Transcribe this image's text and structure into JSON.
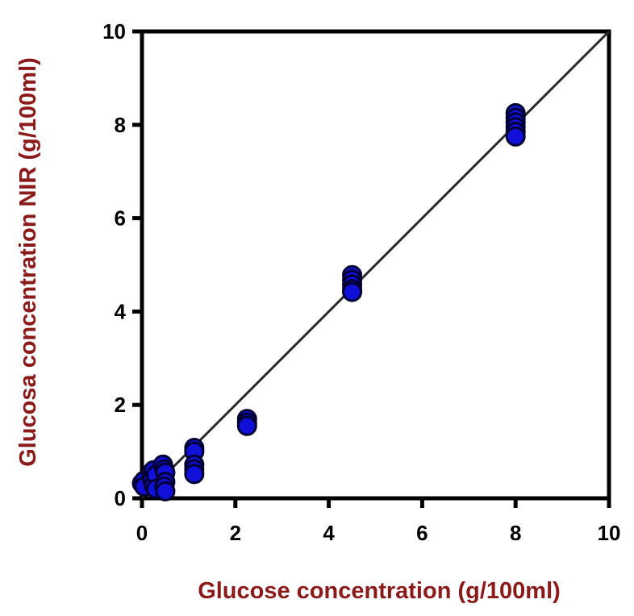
{
  "chart_data": {
    "type": "scatter",
    "title": "",
    "xlabel": "Glucose concentration (g/100ml)",
    "ylabel": "Glucosa concentration NIR (g/100ml)",
    "xlim": [
      0,
      10
    ],
    "ylim": [
      0,
      10
    ],
    "xticks": [
      "0",
      "2",
      "4",
      "6",
      "8",
      "10"
    ],
    "yticks": [
      "0",
      "2",
      "4",
      "6",
      "8",
      "10"
    ],
    "grid": false,
    "legend": "none",
    "colors": {
      "axis_title": "#8b1a1a",
      "marker_fill": "#1010d8",
      "marker_edge": "#000033",
      "line": "#2a2a2a"
    },
    "reference_line": {
      "x": [
        0,
        10
      ],
      "y": [
        0,
        10
      ]
    },
    "points": [
      {
        "x": 0.0,
        "y": 0.32
      },
      {
        "x": 0.05,
        "y": 0.38
      },
      {
        "x": 0.05,
        "y": 0.25
      },
      {
        "x": 0.2,
        "y": 0.55
      },
      {
        "x": 0.22,
        "y": 0.4
      },
      {
        "x": 0.25,
        "y": 0.6
      },
      {
        "x": 0.25,
        "y": 0.28
      },
      {
        "x": 0.3,
        "y": 0.5
      },
      {
        "x": 0.3,
        "y": 0.2
      },
      {
        "x": 0.45,
        "y": 0.72
      },
      {
        "x": 0.48,
        "y": 0.62
      },
      {
        "x": 0.5,
        "y": 0.55
      },
      {
        "x": 0.5,
        "y": 0.35
      },
      {
        "x": 0.48,
        "y": 0.25
      },
      {
        "x": 0.5,
        "y": 0.15
      },
      {
        "x": 1.12,
        "y": 1.08
      },
      {
        "x": 1.12,
        "y": 1.0
      },
      {
        "x": 1.12,
        "y": 0.72
      },
      {
        "x": 1.12,
        "y": 0.62
      },
      {
        "x": 1.12,
        "y": 0.52
      },
      {
        "x": 2.25,
        "y": 1.7
      },
      {
        "x": 2.25,
        "y": 1.62
      },
      {
        "x": 2.25,
        "y": 1.55
      },
      {
        "x": 4.5,
        "y": 4.78
      },
      {
        "x": 4.5,
        "y": 4.68
      },
      {
        "x": 4.5,
        "y": 4.58
      },
      {
        "x": 4.5,
        "y": 4.48
      },
      {
        "x": 4.5,
        "y": 4.42
      },
      {
        "x": 8.0,
        "y": 8.25
      },
      {
        "x": 8.0,
        "y": 8.15
      },
      {
        "x": 8.0,
        "y": 8.05
      },
      {
        "x": 8.0,
        "y": 7.95
      },
      {
        "x": 8.0,
        "y": 7.85
      },
      {
        "x": 8.0,
        "y": 7.75
      }
    ]
  }
}
